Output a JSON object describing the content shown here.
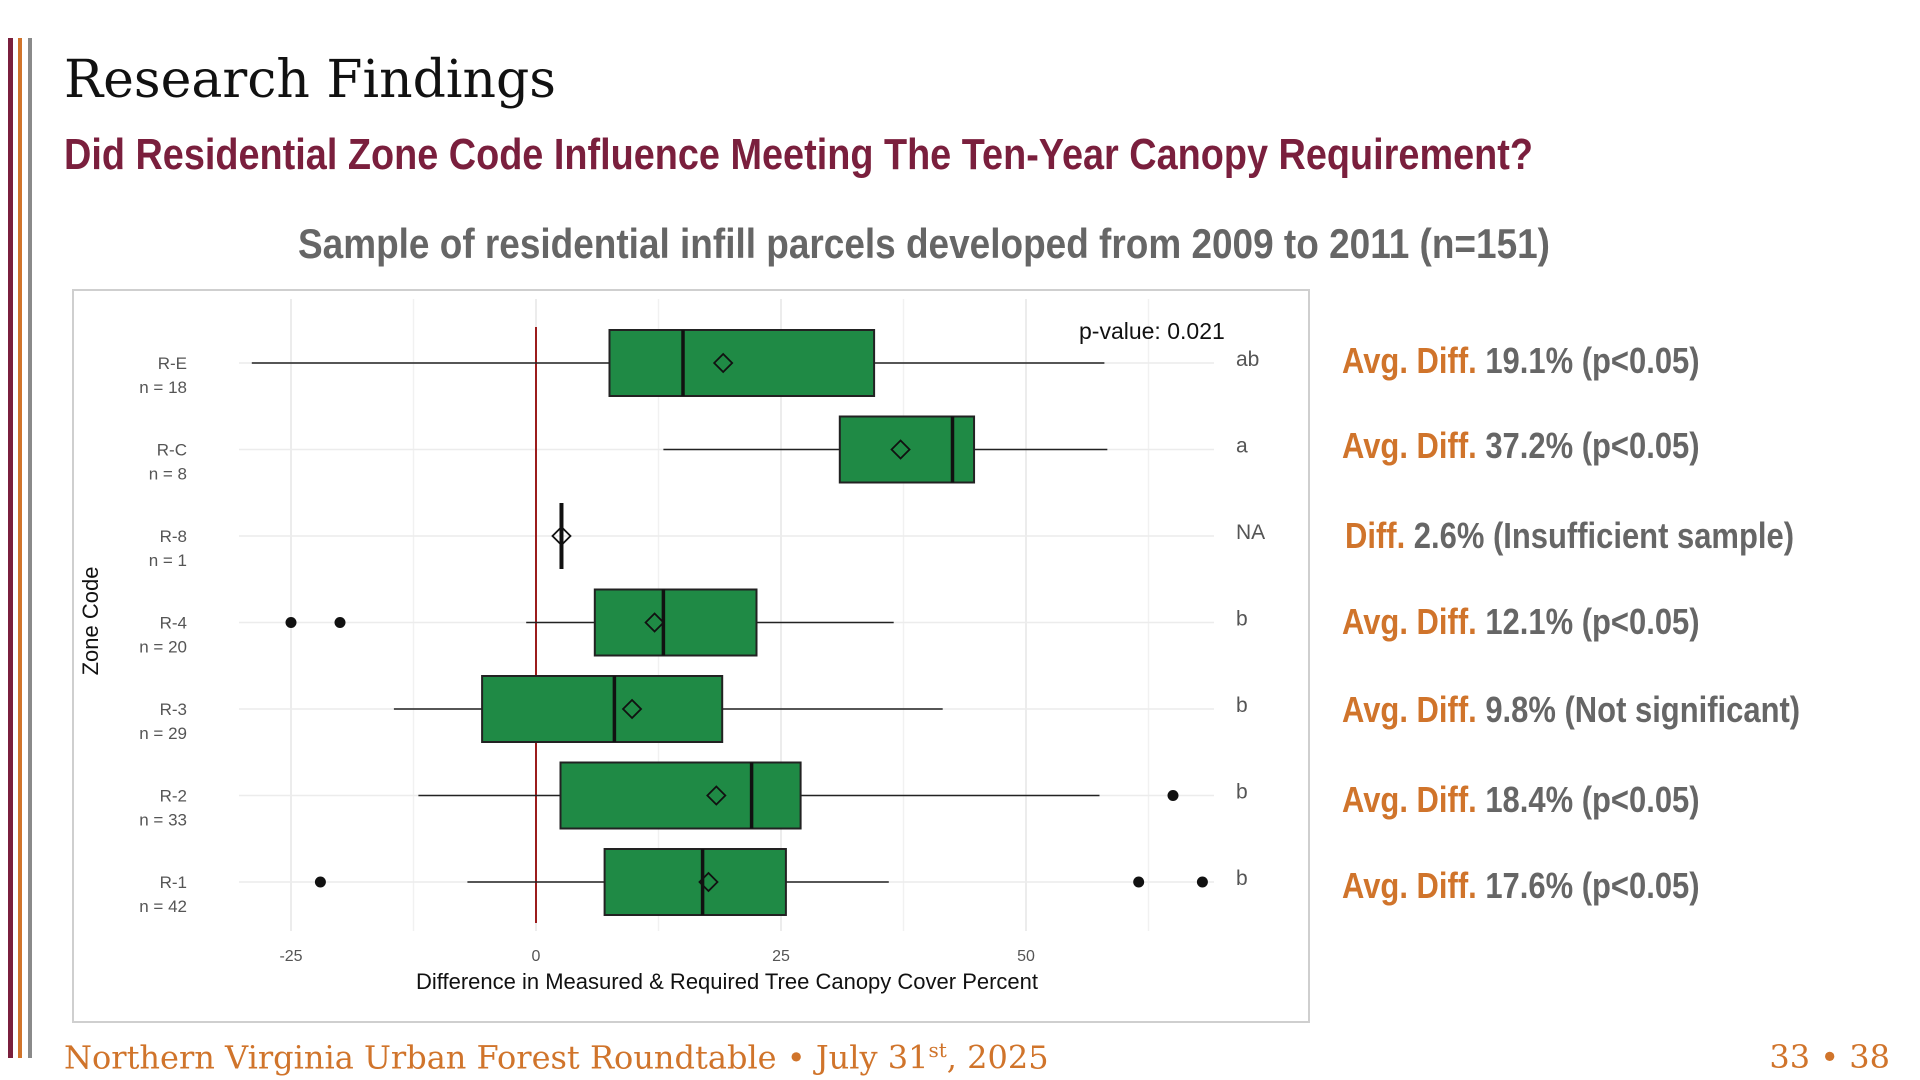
{
  "slide": {
    "title": "Research Findings",
    "subtitle": "Did Residential Zone Code Influence Meeting The Ten-Year Canopy Requirement?",
    "sample_text": "Sample of residential infill parcels developed from 2009 to 2011 (n=151)",
    "footer_main": "Northern Virginia Urban Forest Roundtable • July 31",
    "footer_sup": "st",
    "footer_end": ", 2025",
    "page": "33 • 38",
    "colors": {
      "maroon": "#7a1f3d",
      "orange": "#d0742b",
      "gray": "#666666",
      "box": "#1f8a45"
    }
  },
  "annotations": [
    {
      "key": "Avg. Diff.",
      "text": " 19.1% (p<0.05)"
    },
    {
      "key": "Avg. Diff.",
      "text": " 37.2% (p<0.05)"
    },
    {
      "key": "Diff.",
      "text": " 2.6% (Insufficient sample)"
    },
    {
      "key": "Avg. Diff.",
      "text": " 12.1% (p<0.05)"
    },
    {
      "key": "Avg. Diff.",
      "text": " 9.8% (Not significant)"
    },
    {
      "key": "Avg. Diff.",
      "text": " 18.4% (p<0.05)"
    },
    {
      "key": "Avg. Diff.",
      "text": " 17.6% (p<0.05)"
    }
  ],
  "chart_data": {
    "type": "boxplot",
    "orientation": "horizontal",
    "xlabel": "Difference in Measured & Required Tree Canopy Cover Percent",
    "ylabel": "Zone Code",
    "xlim": [
      -30,
      70
    ],
    "xticks": [
      -25,
      0,
      25,
      50
    ],
    "reference_line_x": 0,
    "pvalue_label": "p-value: 0.021",
    "grid": true,
    "categories": [
      {
        "zone": "R-E",
        "n_label": "n = 18",
        "whisker_low": -29,
        "q1": 7.5,
        "median": 15,
        "q3": 34.5,
        "whisker_high": 58,
        "mean": 19.1,
        "outliers": [],
        "group": "ab"
      },
      {
        "zone": "R-C",
        "n_label": "n = 8",
        "whisker_low": 13,
        "q1": 31,
        "median": 42.5,
        "q3": 44.7,
        "whisker_high": 58.3,
        "mean": 37.2,
        "outliers": [],
        "group": "a"
      },
      {
        "zone": "R-8",
        "n_label": "n = 1",
        "whisker_low": 2.6,
        "q1": 2.6,
        "median": 2.6,
        "q3": 2.6,
        "whisker_high": 2.6,
        "mean": 2.6,
        "outliers": [],
        "group": "NA"
      },
      {
        "zone": "R-4",
        "n_label": "n = 20",
        "whisker_low": -1,
        "q1": 6,
        "median": 13,
        "q3": 22.5,
        "whisker_high": 36.5,
        "mean": 12.1,
        "outliers": [
          -25,
          -20
        ],
        "group": "b"
      },
      {
        "zone": "R-3",
        "n_label": "n = 29",
        "whisker_low": -14.5,
        "q1": -5.5,
        "median": 8,
        "q3": 19,
        "whisker_high": 41.5,
        "mean": 9.8,
        "outliers": [],
        "group": "b"
      },
      {
        "zone": "R-2",
        "n_label": "n = 33",
        "whisker_low": -12,
        "q1": 2.5,
        "median": 22,
        "q3": 27,
        "whisker_high": 57.5,
        "mean": 18.4,
        "outliers": [
          65
        ],
        "group": "b"
      },
      {
        "zone": "R-1",
        "n_label": "n = 42",
        "whisker_low": -7,
        "q1": 7,
        "median": 17,
        "q3": 25.5,
        "whisker_high": 36,
        "mean": 17.6,
        "outliers": [
          -22,
          61.5,
          68
        ],
        "group": "b"
      }
    ]
  }
}
